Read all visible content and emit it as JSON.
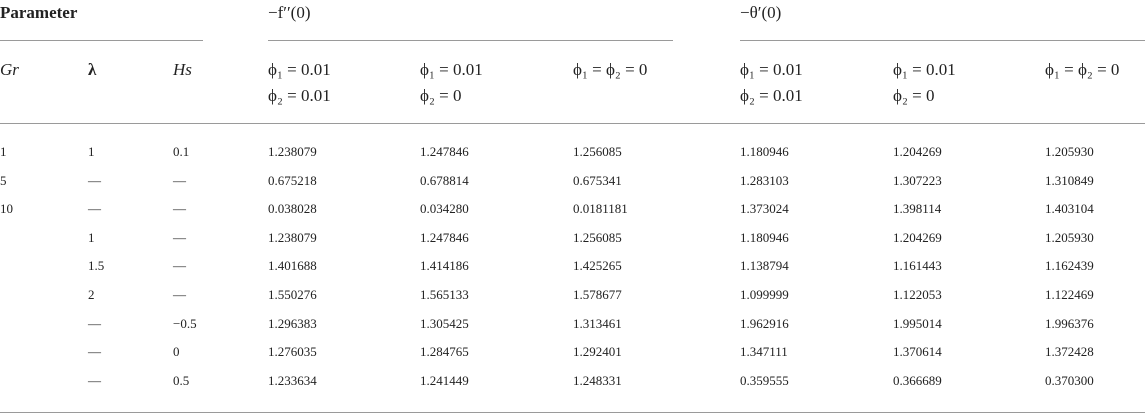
{
  "table": {
    "group_headers": [
      "Parameter",
      "−f′′(0)",
      "−θ′(0)"
    ],
    "sub_headers": [
      [
        "Gr"
      ],
      [
        "λ"
      ],
      [
        "Hs"
      ],
      [
        "ϕ₁ = 0.01",
        "ϕ₂ = 0.01"
      ],
      [
        "ϕ₁ = 0.01",
        "ϕ₂ = 0"
      ],
      [
        "ϕ₁ = ϕ₂ = 0"
      ],
      [
        "ϕ₁ = 0.01",
        "ϕ₂ = 0.01"
      ],
      [
        "ϕ₁ = 0.01",
        "ϕ₂ = 0"
      ],
      [
        "ϕ₁ = ϕ₂ = 0"
      ]
    ],
    "rows": [
      [
        "1",
        "1",
        "0.1",
        "1.238079",
        "1.247846",
        "1.256085",
        "1.180946",
        "1.204269",
        "1.205930"
      ],
      [
        "5",
        "—",
        "—",
        "0.675218",
        "0.678814",
        "0.675341",
        "1.283103",
        "1.307223",
        "1.310849"
      ],
      [
        "10",
        "—",
        "—",
        "0.038028",
        "0.034280",
        "0.0181181",
        "1.373024",
        "1.398114",
        "1.403104"
      ],
      [
        null,
        "1",
        "—",
        "1.238079",
        "1.247846",
        "1.256085",
        "1.180946",
        "1.204269",
        "1.205930"
      ],
      [
        null,
        "1.5",
        "—",
        "1.401688",
        "1.414186",
        "1.425265",
        "1.138794",
        "1.161443",
        "1.162439"
      ],
      [
        null,
        "2",
        "—",
        "1.550276",
        "1.565133",
        "1.578677",
        "1.099999",
        "1.122053",
        "1.122469"
      ],
      [
        null,
        "—",
        "−0.5",
        "1.296383",
        "1.305425",
        "1.313461",
        "1.962916",
        "1.995014",
        "1.996376"
      ],
      [
        null,
        "—",
        "0",
        "1.276035",
        "1.284765",
        "1.292401",
        "1.347111",
        "1.370614",
        "1.372428"
      ],
      [
        null,
        "—",
        "0.5",
        "1.233634",
        "1.241449",
        "1.248331",
        "0.359555",
        "0.366689",
        "0.370300"
      ]
    ]
  }
}
